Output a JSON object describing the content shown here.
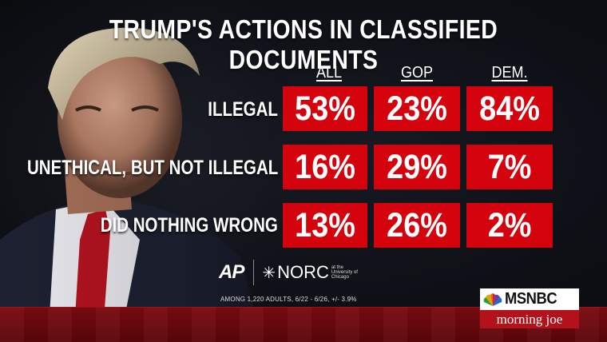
{
  "title": "TRUMP'S ACTIONS IN CLASSIFIED DOCUMENTS",
  "chart_data": {
    "type": "table",
    "title": "TRUMP'S ACTIONS IN CLASSIFIED DOCUMENTS",
    "columns": [
      "ALL",
      "GOP",
      "DEM."
    ],
    "rows": [
      {
        "label": "ILLEGAL",
        "values": [
          "53%",
          "23%",
          "84%"
        ]
      },
      {
        "label": "UNETHICAL, BUT NOT ILLEGAL",
        "values": [
          "16%",
          "29%",
          "7%"
        ]
      },
      {
        "label": "DID NOTHING WRONG",
        "values": [
          "13%",
          "26%",
          "2%"
        ]
      }
    ],
    "numeric_values": [
      [
        53,
        23,
        84
      ],
      [
        16,
        29,
        7
      ],
      [
        13,
        26,
        2
      ]
    ],
    "cell_color": "#d4020c"
  },
  "source": {
    "ap_logo": "AP",
    "norc_logo": "NORC",
    "norc_subtext": "at the University of Chicago",
    "footnote": "AMONG 1,220 ADULTS, 6/22 - 6/26, +/- 3.9%"
  },
  "network": {
    "name": "MSNBC",
    "show": "morning joe",
    "logo_icon": "peacock-icon",
    "show_color": "#b3121b"
  }
}
